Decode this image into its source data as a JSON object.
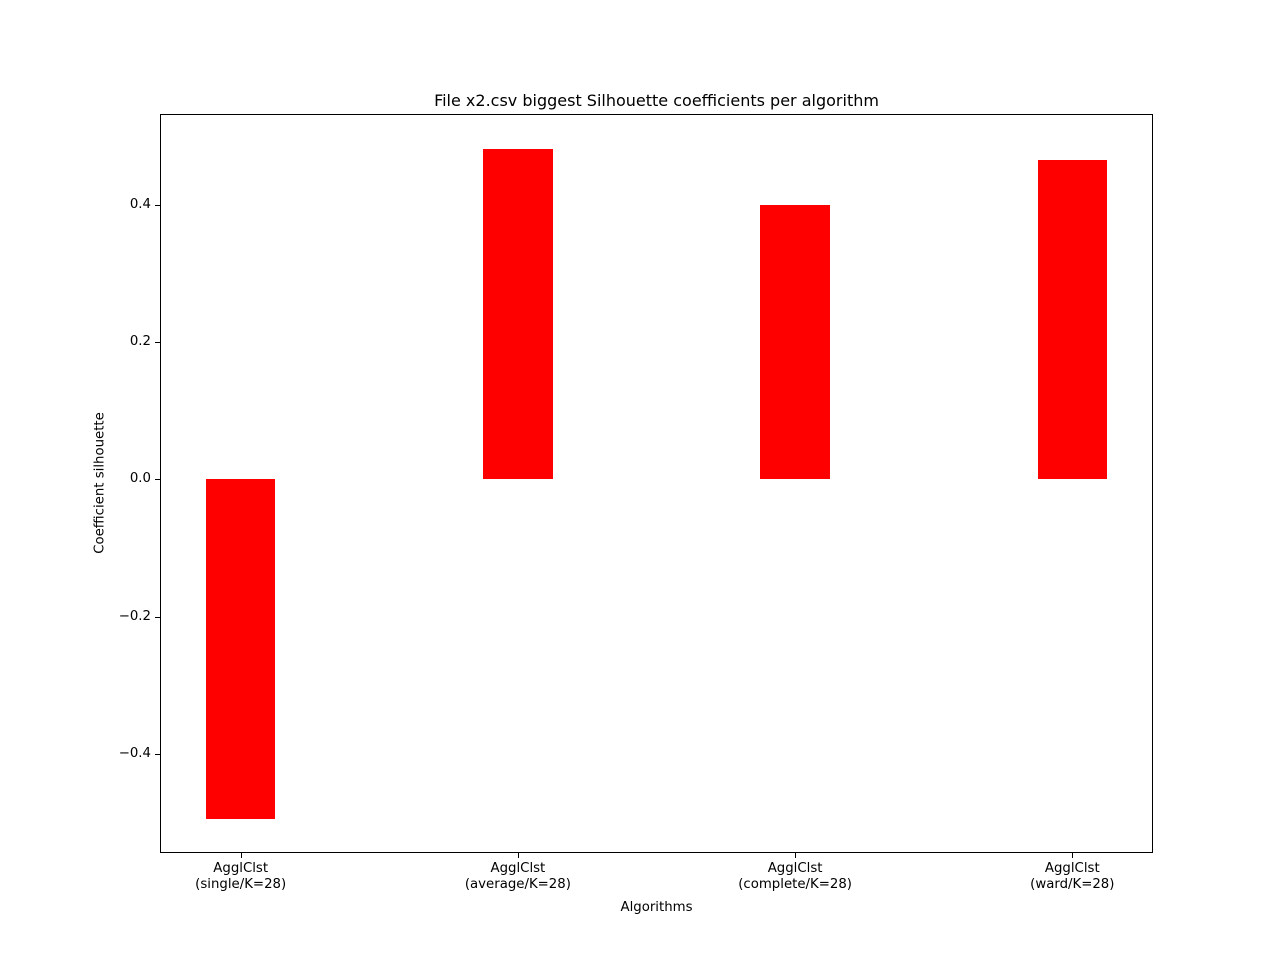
{
  "figure": {
    "background": "#ffffff"
  },
  "chart_data": {
    "type": "bar",
    "title": "File x2.csv biggest Silhouette coefficients per algorithm",
    "xlabel": "Algorithms",
    "ylabel": "Coefficient silhouette",
    "categories": [
      [
        "AgglClst",
        "(single/K=28)"
      ],
      [
        "AgglClst",
        "(average/K=28)"
      ],
      [
        "AgglClst",
        "(complete/K=28)"
      ],
      [
        "AgglClst",
        "(ward/K=28)"
      ]
    ],
    "values": [
      -0.495,
      0.481,
      0.4,
      0.466
    ],
    "bar_color": "#ff0000",
    "bar_width_data": 0.25,
    "xlim": [
      -0.2875,
      3.2875
    ],
    "ylim": [
      -0.543,
      0.531
    ],
    "yticks": [
      0.4,
      0.2,
      0.0,
      -0.2,
      -0.4
    ],
    "ytick_labels": [
      "0.4",
      "0.2",
      "0.0",
      "−0.2",
      "−0.4"
    ],
    "grid": false,
    "legend": null
  }
}
